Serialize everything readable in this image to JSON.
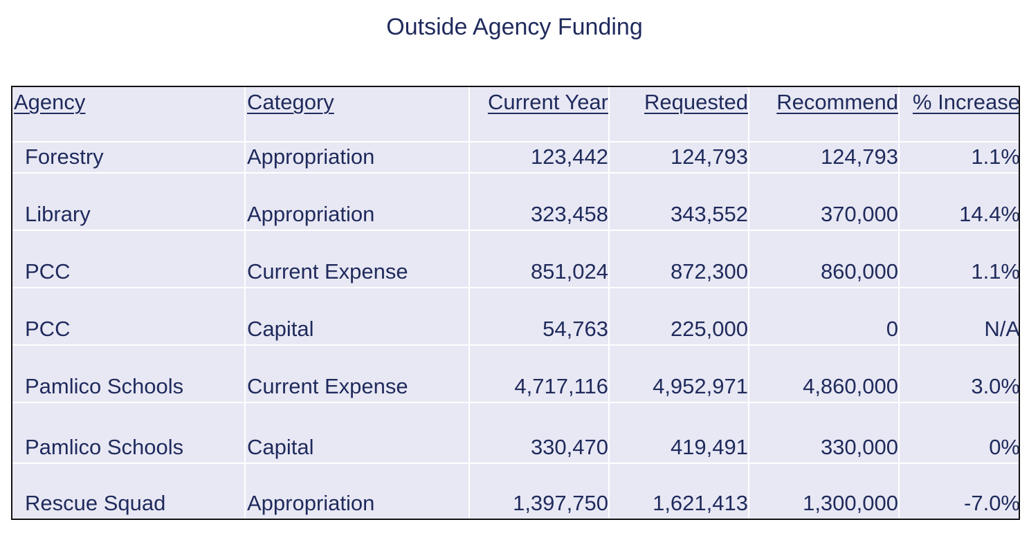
{
  "title": "Outside Agency Funding",
  "table": {
    "headers": [
      "Agency",
      "Category",
      "Current Year",
      "Requested",
      "Recommend",
      "% Increase"
    ],
    "rows": [
      [
        "Forestry",
        "Appropriation",
        "123,442",
        "124,793",
        "124,793",
        "1.1%"
      ],
      [
        "Library",
        "Appropriation",
        "323,458",
        "343,552",
        "370,000",
        "14.4%"
      ],
      [
        "PCC",
        "Current Expense",
        "851,024",
        "872,300",
        "860,000",
        "1.1%"
      ],
      [
        "PCC",
        "Capital",
        "54,763",
        "225,000",
        "0",
        "N/A"
      ],
      [
        "Pamlico Schools",
        "Current Expense",
        "4,717,116",
        "4,952,971",
        "4,860,000",
        "3.0%"
      ],
      [
        "Pamlico Schools",
        "Capital",
        "330,470",
        "419,491",
        "330,000",
        "0%"
      ],
      [
        "Rescue Squad",
        "Appropriation",
        "1,397,750",
        "1,621,413",
        "1,300,000",
        "-7.0%"
      ]
    ]
  },
  "colors": {
    "text": "#1f2a5c",
    "cell_background": "#e8e8f4",
    "gridline": "#ffffff",
    "border": "#111111"
  }
}
